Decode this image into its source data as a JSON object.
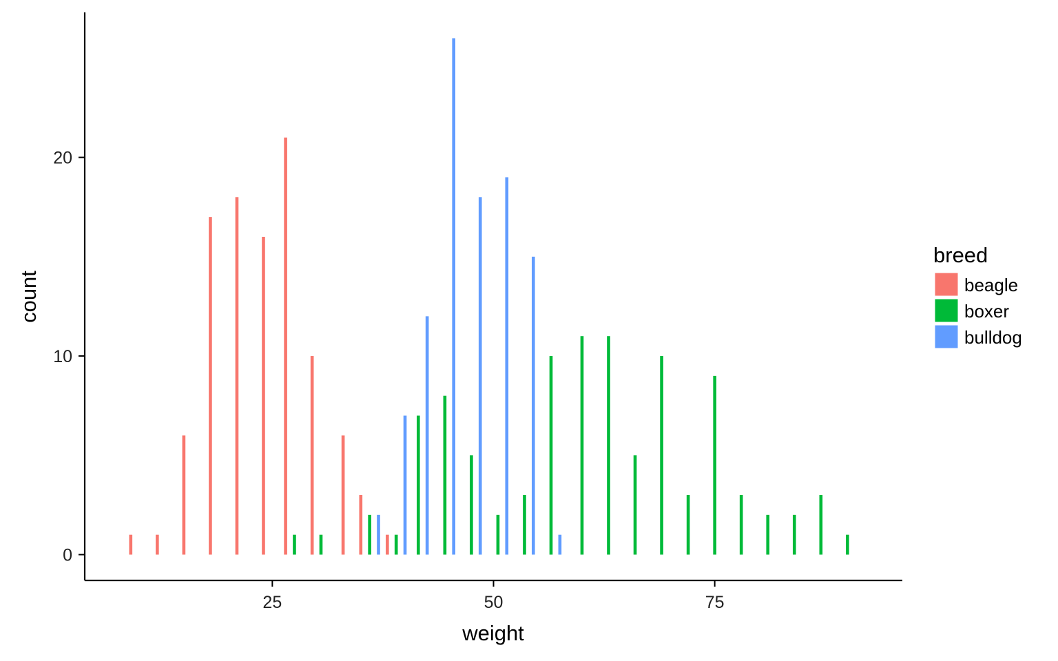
{
  "chart_data": {
    "type": "bar",
    "xlabel": "weight",
    "ylabel": "count",
    "xlim": [
      3.8,
      96.2
    ],
    "ylim": [
      -1.3,
      27.3
    ],
    "xticks": [
      25,
      50,
      75
    ],
    "yticks": [
      0,
      10,
      20
    ],
    "bin_width": 3,
    "grid": false,
    "legend": {
      "title": "breed",
      "position": "right"
    },
    "series": [
      {
        "name": "beagle",
        "color": "#F8766D",
        "x": [
          9,
          12,
          15,
          18,
          21,
          24,
          27,
          30,
          33,
          36,
          39
        ],
        "values": [
          1,
          1,
          6,
          17,
          18,
          16,
          21,
          10,
          6,
          3,
          1
        ]
      },
      {
        "name": "boxer",
        "color": "#00BA38",
        "x": [
          27,
          30,
          36,
          39,
          42,
          45,
          48,
          51,
          54,
          57,
          60,
          63,
          66,
          69,
          72,
          75,
          78,
          81,
          84,
          87,
          90
        ],
        "values": [
          1,
          1,
          2,
          1,
          7,
          8,
          5,
          2,
          3,
          10,
          11,
          11,
          5,
          10,
          3,
          9,
          3,
          2,
          2,
          3,
          1
        ]
      },
      {
        "name": "bulldog",
        "color": "#619CFF",
        "x": [
          36,
          39,
          42,
          45,
          48,
          51,
          54,
          57
        ],
        "values": [
          2,
          7,
          12,
          26,
          18,
          19,
          15,
          1
        ]
      }
    ]
  }
}
